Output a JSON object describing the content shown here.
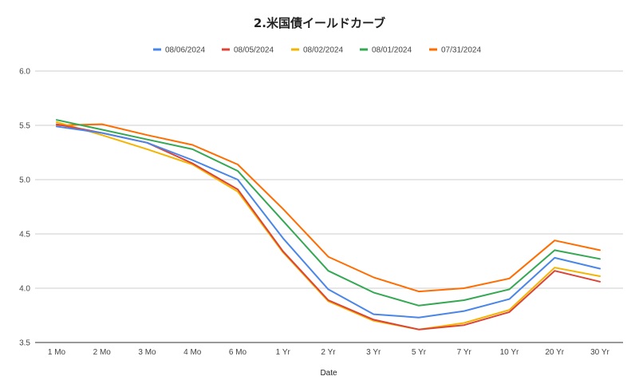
{
  "chart_data": {
    "type": "line",
    "title": "2.米国債イールドカーブ",
    "xlabel": "Date",
    "ylabel": "",
    "categories": [
      "1 Mo",
      "2 Mo",
      "3 Mo",
      "4 Mo",
      "6 Mo",
      "1 Yr",
      "2 Yr",
      "3 Yr",
      "5 Yr",
      "7 Yr",
      "10 Yr",
      "20 Yr",
      "30 Yr"
    ],
    "ylim": [
      3.5,
      6.0
    ],
    "yticks": [
      "3.5",
      "4.0",
      "4.5",
      "5.0",
      "5.5",
      "6.0"
    ],
    "grid": true,
    "legend_position": "top",
    "series": [
      {
        "name": "08/06/2024",
        "color": "#4a86e8",
        "values": [
          5.49,
          5.43,
          5.34,
          5.18,
          5.0,
          4.46,
          3.99,
          3.76,
          3.73,
          3.79,
          3.9,
          4.28,
          4.18
        ]
      },
      {
        "name": "08/05/2024",
        "color": "#db4437",
        "values": [
          5.51,
          5.43,
          5.34,
          5.15,
          4.91,
          4.34,
          3.89,
          3.71,
          3.62,
          3.66,
          3.78,
          4.16,
          4.06
        ]
      },
      {
        "name": "08/02/2024",
        "color": "#f4b400",
        "values": [
          5.53,
          5.41,
          5.28,
          5.14,
          4.89,
          4.33,
          3.88,
          3.7,
          3.62,
          3.68,
          3.8,
          4.19,
          4.11
        ]
      },
      {
        "name": "08/01/2024",
        "color": "#34a853",
        "values": [
          5.55,
          5.46,
          5.37,
          5.28,
          5.08,
          4.62,
          4.16,
          3.96,
          3.84,
          3.89,
          3.99,
          4.35,
          4.27
        ]
      },
      {
        "name": "07/31/2024",
        "color": "#ff6d01",
        "values": [
          5.5,
          5.51,
          5.41,
          5.32,
          5.14,
          4.73,
          4.29,
          4.1,
          3.97,
          4.0,
          4.09,
          4.44,
          4.35
        ]
      }
    ]
  }
}
